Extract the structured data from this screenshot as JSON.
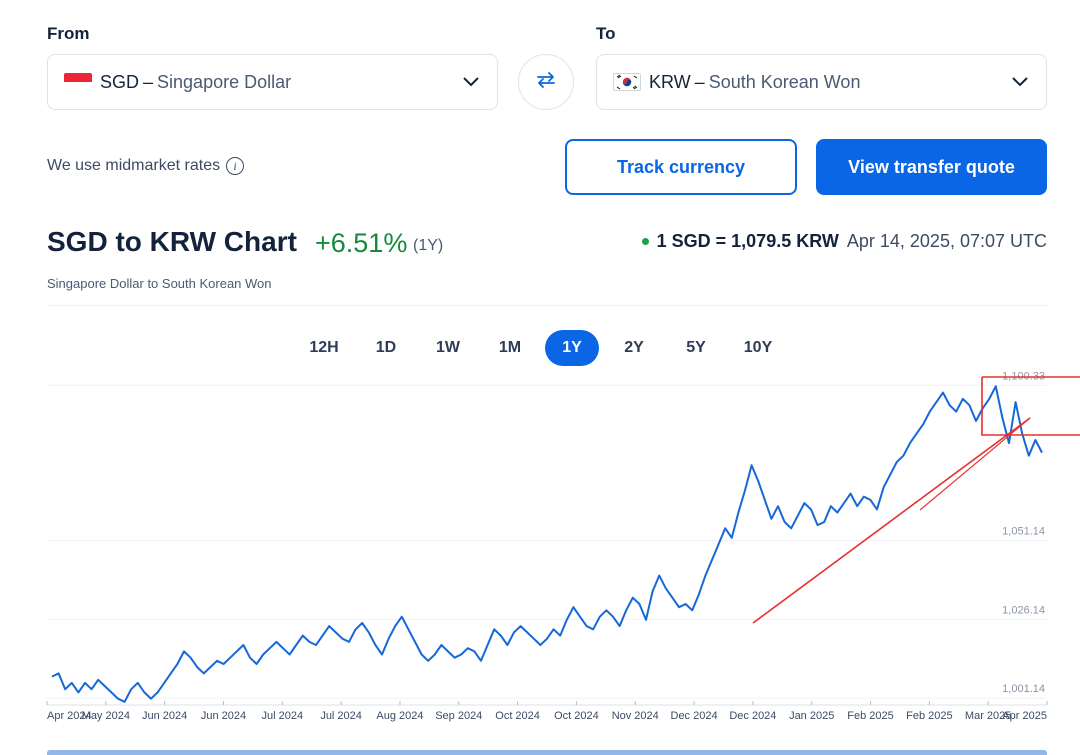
{
  "from": {
    "label": "From",
    "code": "SGD",
    "dash": "–",
    "name": "Singapore Dollar",
    "flag_icon": "singapore-flag-icon"
  },
  "to": {
    "label": "To",
    "code": "KRW",
    "dash": "–",
    "name": "South Korean Won",
    "flag_icon": "south-korea-flag-icon"
  },
  "midmarket_text": "We use midmarket rates",
  "buttons": {
    "track": "Track currency",
    "quote": "View transfer quote"
  },
  "header": {
    "title": "SGD to KRW Chart",
    "change": "+6.51%",
    "period": "(1Y)",
    "rate": "1 SGD = 1,079.5 KRW",
    "timestamp": "Apr 14, 2025, 07:07 UTC",
    "subtitle": "Singapore Dollar to South Korean Won"
  },
  "tabs": [
    {
      "label": "12H",
      "active": false
    },
    {
      "label": "1D",
      "active": false
    },
    {
      "label": "1W",
      "active": false
    },
    {
      "label": "1M",
      "active": false
    },
    {
      "label": "1Y",
      "active": true
    },
    {
      "label": "2Y",
      "active": false
    },
    {
      "label": "5Y",
      "active": false
    },
    {
      "label": "10Y",
      "active": false
    }
  ],
  "colors": {
    "accent": "#0a66e4",
    "positive": "#168a3c",
    "line": "#1668d9",
    "annotation": "#e8302b"
  },
  "chart_data": {
    "type": "line",
    "y_ticks": [
      "1,100.33",
      "1,051.14",
      "1,026.14",
      "1,001.14"
    ],
    "ylim": [
      999,
      1102
    ],
    "x_labels": [
      "Apr 2024",
      "May 2024",
      "Jun 2024",
      "Jun 2024",
      "Jul 2024",
      "Jul 2024",
      "Aug 2024",
      "Sep 2024",
      "Oct 2024",
      "Oct 2024",
      "Nov 2024",
      "Dec 2024",
      "Dec 2024",
      "Jan 2025",
      "Feb 2025",
      "Feb 2025",
      "Mar 2025",
      "Apr 2025"
    ],
    "series": [
      {
        "values": [
          1008,
          1009,
          1004,
          1006,
          1003,
          1006,
          1004,
          1007,
          1005,
          1003,
          1001,
          1000,
          1004,
          1006,
          1003,
          1001,
          1003,
          1006,
          1009,
          1012,
          1016,
          1014,
          1011,
          1009,
          1011,
          1013,
          1012,
          1014,
          1016,
          1018,
          1014,
          1012,
          1015,
          1017,
          1019,
          1017,
          1015,
          1018,
          1021,
          1019,
          1018,
          1021,
          1024,
          1022,
          1020,
          1019,
          1023,
          1025,
          1022,
          1018,
          1015,
          1020,
          1024,
          1027,
          1023,
          1019,
          1015,
          1013,
          1015,
          1018,
          1016,
          1014,
          1015,
          1017,
          1016,
          1013,
          1018,
          1023,
          1021,
          1018,
          1022,
          1024,
          1022,
          1020,
          1018,
          1020,
          1023,
          1021,
          1026,
          1030,
          1027,
          1024,
          1023,
          1027,
          1029,
          1027,
          1024,
          1029,
          1033,
          1031,
          1026,
          1035,
          1040,
          1036,
          1033,
          1030,
          1031,
          1029,
          1034,
          1040,
          1045,
          1050,
          1055,
          1052,
          1060,
          1067,
          1075,
          1070,
          1064,
          1058,
          1062,
          1057,
          1055,
          1059,
          1063,
          1061,
          1056,
          1057,
          1062,
          1060,
          1063,
          1066,
          1062,
          1065,
          1064,
          1061,
          1068,
          1072,
          1076,
          1078,
          1082,
          1085,
          1088,
          1092,
          1095,
          1098,
          1094,
          1092,
          1096,
          1094,
          1089,
          1093,
          1096,
          1100,
          1090,
          1082,
          1095,
          1085,
          1078,
          1083,
          1079
        ]
      }
    ]
  }
}
